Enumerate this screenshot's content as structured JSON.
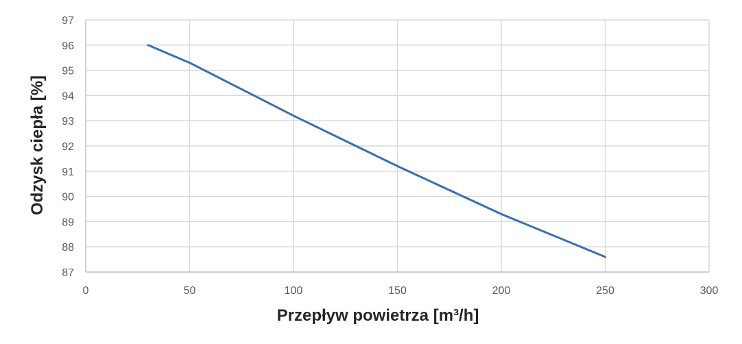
{
  "chart_data": {
    "type": "line",
    "title": "",
    "xlabel": "Przepływ powietrza [m³/h]",
    "ylabel": "Odzysk ciepła [%]",
    "xlim": [
      0,
      300
    ],
    "ylim": [
      87,
      97
    ],
    "xticks": [
      0,
      50,
      100,
      150,
      200,
      250,
      300
    ],
    "yticks": [
      87,
      88,
      89,
      90,
      91,
      92,
      93,
      94,
      95,
      96,
      97
    ],
    "grid": true,
    "legend": "none",
    "series": [
      {
        "color": "#3a6fb0",
        "x": [
          30,
          50,
          100,
          150,
          200,
          250
        ],
        "y": [
          96.0,
          95.3,
          93.2,
          91.2,
          89.3,
          87.6
        ]
      }
    ]
  }
}
